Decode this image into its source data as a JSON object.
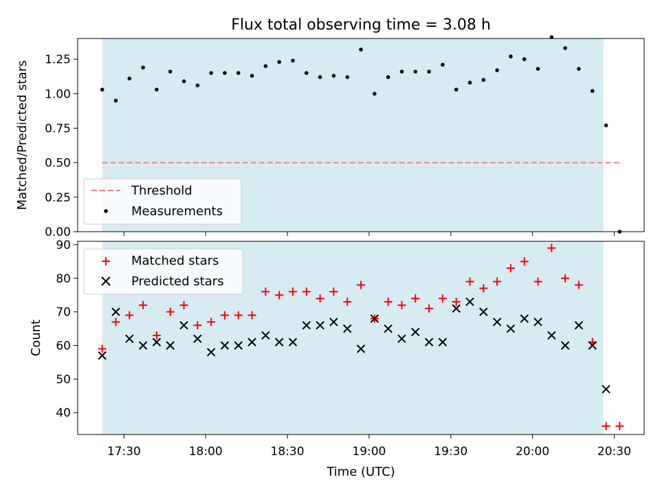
{
  "title": "Flux total observing time = 3.08 h",
  "colors": {
    "band": "#add8e6",
    "threshold": "#f08080",
    "measurement": "#000000",
    "matched": "#ff0000",
    "predicted": "#000000"
  },
  "chart_data": [
    {
      "type": "scatter",
      "ylabel": "Matched/Predicted stars",
      "ylim": [
        0,
        1.4
      ],
      "yticks": [
        "0.00",
        "0.25",
        "0.50",
        "0.75",
        "1.00",
        "1.25"
      ],
      "legend": {
        "placement": "lower-left",
        "entries": [
          "Threshold",
          "Measurements"
        ]
      },
      "threshold": {
        "name": "Threshold",
        "value": 0.5,
        "x_range": [
          "17:22",
          "20:32"
        ]
      },
      "observing_window": [
        "17:22",
        "20:26"
      ],
      "series": [
        {
          "name": "Measurements",
          "x": [
            "17:22",
            "17:27",
            "17:32",
            "17:37",
            "17:42",
            "17:47",
            "17:52",
            "17:57",
            "18:02",
            "18:07",
            "18:12",
            "18:17",
            "18:22",
            "18:27",
            "18:32",
            "18:37",
            "18:42",
            "18:47",
            "18:52",
            "18:57",
            "19:02",
            "19:07",
            "19:12",
            "19:17",
            "19:22",
            "19:27",
            "19:32",
            "19:37",
            "19:42",
            "19:47",
            "19:52",
            "19:57",
            "20:02",
            "20:07",
            "20:12",
            "20:17",
            "20:22",
            "20:27",
            "20:32"
          ],
          "values": [
            1.03,
            0.95,
            1.11,
            1.19,
            1.03,
            1.16,
            1.09,
            1.06,
            1.15,
            1.15,
            1.15,
            1.13,
            1.2,
            1.23,
            1.24,
            1.15,
            1.12,
            1.13,
            1.12,
            1.32,
            1.0,
            1.12,
            1.16,
            1.16,
            1.16,
            1.21,
            1.03,
            1.08,
            1.1,
            1.17,
            1.27,
            1.25,
            1.18,
            1.41,
            1.33,
            1.18,
            1.02,
            0.77,
            0.0
          ]
        }
      ]
    },
    {
      "type": "scatter",
      "xlabel": "Time (UTC)",
      "ylabel": "Count",
      "ylim": [
        33.5,
        91
      ],
      "yticks": [
        "40",
        "50",
        "60",
        "70",
        "80",
        "90"
      ],
      "xticks": [
        "17:30",
        "18:00",
        "18:30",
        "19:00",
        "19:30",
        "20:00",
        "20:30"
      ],
      "legend": {
        "placement": "top-left",
        "entries": [
          "Matched stars",
          "Predicted stars"
        ]
      },
      "observing_window": [
        "17:22",
        "20:26"
      ],
      "series": [
        {
          "name": "Matched stars",
          "x": [
            "17:22",
            "17:27",
            "17:32",
            "17:37",
            "17:42",
            "17:47",
            "17:52",
            "17:57",
            "18:02",
            "18:07",
            "18:12",
            "18:17",
            "18:22",
            "18:27",
            "18:32",
            "18:37",
            "18:42",
            "18:47",
            "18:52",
            "18:57",
            "19:02",
            "19:07",
            "19:12",
            "19:17",
            "19:22",
            "19:27",
            "19:32",
            "19:37",
            "19:42",
            "19:47",
            "19:52",
            "19:57",
            "20:02",
            "20:07",
            "20:12",
            "20:17",
            "20:22",
            "20:27",
            "20:32"
          ],
          "values": [
            59,
            67,
            69,
            72,
            63,
            70,
            72,
            66,
            67,
            69,
            69,
            69,
            76,
            75,
            76,
            76,
            74,
            76,
            73,
            78,
            68,
            73,
            72,
            74,
            71,
            74,
            73,
            79,
            77,
            79,
            83,
            85,
            79,
            89,
            80,
            78,
            61,
            36,
            36
          ]
        },
        {
          "name": "Predicted stars",
          "x": [
            "17:22",
            "17:27",
            "17:32",
            "17:37",
            "17:42",
            "17:47",
            "17:52",
            "17:57",
            "18:02",
            "18:07",
            "18:12",
            "18:17",
            "18:22",
            "18:27",
            "18:32",
            "18:37",
            "18:42",
            "18:47",
            "18:52",
            "18:57",
            "19:02",
            "19:07",
            "19:12",
            "19:17",
            "19:22",
            "19:27",
            "19:32",
            "19:37",
            "19:42",
            "19:47",
            "19:52",
            "19:57",
            "20:02",
            "20:07",
            "20:12",
            "20:17",
            "20:22",
            "20:27"
          ],
          "values": [
            57,
            70,
            62,
            60,
            61,
            60,
            66,
            62,
            58,
            60,
            60,
            61,
            63,
            61,
            61,
            66,
            66,
            67,
            65,
            59,
            68,
            65,
            62,
            64,
            61,
            61,
            71,
            73,
            70,
            67,
            65,
            68,
            67,
            63,
            60,
            66,
            60,
            47
          ]
        }
      ]
    }
  ]
}
